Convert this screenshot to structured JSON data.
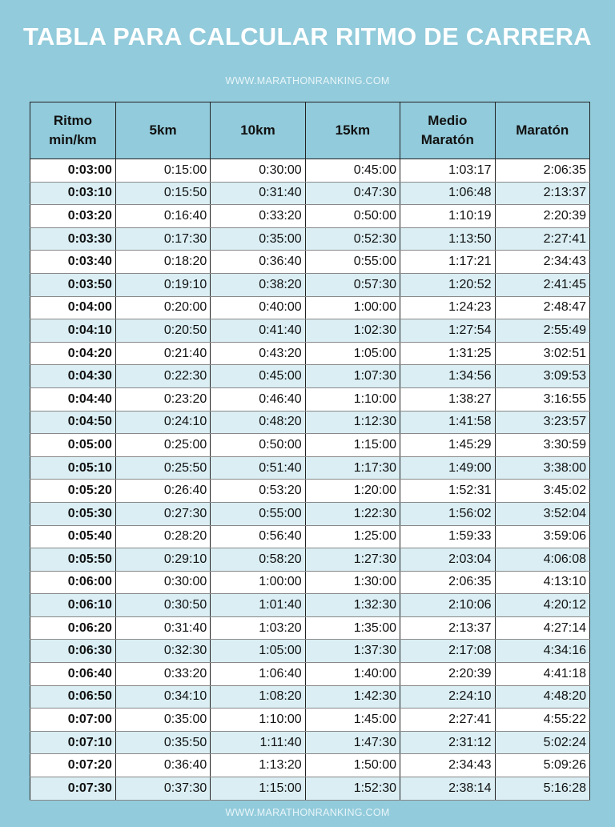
{
  "title": "TABLA PARA CALCULAR RITMO DE CARRERA",
  "website": "WWW.MARATHONRANKING.COM",
  "colors": {
    "background": "#92cbdb",
    "alt_row": "#daeef3",
    "row": "#ffffff",
    "title_text": "#ffffff"
  },
  "table": {
    "headers": [
      [
        "Ritmo",
        "min/km"
      ],
      [
        "5km"
      ],
      [
        "10km"
      ],
      [
        "15km"
      ],
      [
        "Medio",
        "Maratón"
      ],
      [
        "Maratón"
      ]
    ],
    "rows": [
      [
        "0:03:00",
        "0:15:00",
        "0:30:00",
        "0:45:00",
        "1:03:17",
        "2:06:35"
      ],
      [
        "0:03:10",
        "0:15:50",
        "0:31:40",
        "0:47:30",
        "1:06:48",
        "2:13:37"
      ],
      [
        "0:03:20",
        "0:16:40",
        "0:33:20",
        "0:50:00",
        "1:10:19",
        "2:20:39"
      ],
      [
        "0:03:30",
        "0:17:30",
        "0:35:00",
        "0:52:30",
        "1:13:50",
        "2:27:41"
      ],
      [
        "0:03:40",
        "0:18:20",
        "0:36:40",
        "0:55:00",
        "1:17:21",
        "2:34:43"
      ],
      [
        "0:03:50",
        "0:19:10",
        "0:38:20",
        "0:57:30",
        "1:20:52",
        "2:41:45"
      ],
      [
        "0:04:00",
        "0:20:00",
        "0:40:00",
        "1:00:00",
        "1:24:23",
        "2:48:47"
      ],
      [
        "0:04:10",
        "0:20:50",
        "0:41:40",
        "1:02:30",
        "1:27:54",
        "2:55:49"
      ],
      [
        "0:04:20",
        "0:21:40",
        "0:43:20",
        "1:05:00",
        "1:31:25",
        "3:02:51"
      ],
      [
        "0:04:30",
        "0:22:30",
        "0:45:00",
        "1:07:30",
        "1:34:56",
        "3:09:53"
      ],
      [
        "0:04:40",
        "0:23:20",
        "0:46:40",
        "1:10:00",
        "1:38:27",
        "3:16:55"
      ],
      [
        "0:04:50",
        "0:24:10",
        "0:48:20",
        "1:12:30",
        "1:41:58",
        "3:23:57"
      ],
      [
        "0:05:00",
        "0:25:00",
        "0:50:00",
        "1:15:00",
        "1:45:29",
        "3:30:59"
      ],
      [
        "0:05:10",
        "0:25:50",
        "0:51:40",
        "1:17:30",
        "1:49:00",
        "3:38:00"
      ],
      [
        "0:05:20",
        "0:26:40",
        "0:53:20",
        "1:20:00",
        "1:52:31",
        "3:45:02"
      ],
      [
        "0:05:30",
        "0:27:30",
        "0:55:00",
        "1:22:30",
        "1:56:02",
        "3:52:04"
      ],
      [
        "0:05:40",
        "0:28:20",
        "0:56:40",
        "1:25:00",
        "1:59:33",
        "3:59:06"
      ],
      [
        "0:05:50",
        "0:29:10",
        "0:58:20",
        "1:27:30",
        "2:03:04",
        "4:06:08"
      ],
      [
        "0:06:00",
        "0:30:00",
        "1:00:00",
        "1:30:00",
        "2:06:35",
        "4:13:10"
      ],
      [
        "0:06:10",
        "0:30:50",
        "1:01:40",
        "1:32:30",
        "2:10:06",
        "4:20:12"
      ],
      [
        "0:06:20",
        "0:31:40",
        "1:03:20",
        "1:35:00",
        "2:13:37",
        "4:27:14"
      ],
      [
        "0:06:30",
        "0:32:30",
        "1:05:00",
        "1:37:30",
        "2:17:08",
        "4:34:16"
      ],
      [
        "0:06:40",
        "0:33:20",
        "1:06:40",
        "1:40:00",
        "2:20:39",
        "4:41:18"
      ],
      [
        "0:06:50",
        "0:34:10",
        "1:08:20",
        "1:42:30",
        "2:24:10",
        "4:48:20"
      ],
      [
        "0:07:00",
        "0:35:00",
        "1:10:00",
        "1:45:00",
        "2:27:41",
        "4:55:22"
      ],
      [
        "0:07:10",
        "0:35:50",
        "1:11:40",
        "1:47:30",
        "2:31:12",
        "5:02:24"
      ],
      [
        "0:07:20",
        "0:36:40",
        "1:13:20",
        "1:50:00",
        "2:34:43",
        "5:09:26"
      ],
      [
        "0:07:30",
        "0:37:30",
        "1:15:00",
        "1:52:30",
        "2:38:14",
        "5:16:28"
      ]
    ]
  }
}
